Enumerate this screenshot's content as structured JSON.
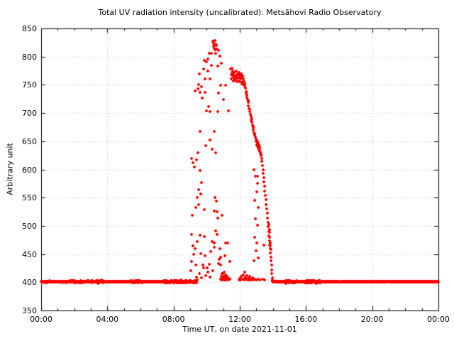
{
  "chart_data": {
    "type": "scatter",
    "title": "Total UV radiation intensity (uncalibrated). Metsähovi Radio Observatory",
    "xlabel": "Time UT, on date 2021-11-01",
    "ylabel": "Arbitrary unit",
    "xlim_hours": [
      0,
      24
    ],
    "ylim": [
      350,
      850
    ],
    "grid": "dotted",
    "legend": "none",
    "point_color": "#ff0000",
    "grid_color": "#b8b8b8",
    "axis_color": "#000000",
    "background_color": "#ffffff",
    "x_minor_tick_interval_hours": 1,
    "x_ticks": [
      {
        "hour": 0,
        "label": "00:00"
      },
      {
        "hour": 4,
        "label": "04:00"
      },
      {
        "hour": 8,
        "label": "08:00"
      },
      {
        "hour": 12,
        "label": "12:00"
      },
      {
        "hour": 16,
        "label": "16:00"
      },
      {
        "hour": 20,
        "label": "20:00"
      },
      {
        "hour": 24,
        "label": "00:00"
      }
    ],
    "y_ticks": [
      350,
      400,
      450,
      500,
      550,
      600,
      650,
      700,
      750,
      800,
      850
    ],
    "baseline": {
      "value": 401,
      "step_hours": 0.012,
      "segments": [
        {
          "start": 0.0,
          "end": 1.7,
          "jitter": 1.5
        },
        {
          "start": 1.7,
          "end": 2.1,
          "jitter": 3.0
        },
        {
          "start": 2.1,
          "end": 3.3,
          "jitter": 2.0
        },
        {
          "start": 3.3,
          "end": 3.75,
          "jitter": 3.0
        },
        {
          "start": 3.75,
          "end": 5.4,
          "jitter": 1.3
        },
        {
          "start": 5.4,
          "end": 6.1,
          "jitter": 2.2
        },
        {
          "start": 6.1,
          "end": 7.4,
          "jitter": 1.3
        },
        {
          "start": 7.4,
          "end": 8.3,
          "jitter": 2.5
        },
        {
          "start": 8.3,
          "end": 9.42,
          "jitter": 3.0
        },
        {
          "start": 13.97,
          "end": 14.75,
          "jitter": 1.5
        },
        {
          "start": 14.75,
          "end": 15.45,
          "jitter": 2.8
        },
        {
          "start": 15.45,
          "end": 15.95,
          "jitter": 1.3
        },
        {
          "start": 15.95,
          "end": 16.9,
          "jitter": 3.2
        },
        {
          "start": 16.9,
          "end": 24.0,
          "jitter": 1.0
        }
      ]
    },
    "event_points": [
      [
        9.3,
        739
      ],
      [
        9.45,
        743
      ],
      [
        9.5,
        751
      ],
      [
        9.56,
        770
      ],
      [
        9.62,
        737
      ],
      [
        9.7,
        747
      ],
      [
        9.72,
        727
      ],
      [
        9.8,
        778
      ],
      [
        9.85,
        793
      ],
      [
        9.88,
        737
      ],
      [
        9.9,
        760
      ],
      [
        9.94,
        642
      ],
      [
        9.97,
        791
      ],
      [
        10.0,
        704
      ],
      [
        10.05,
        796
      ],
      [
        10.08,
        774
      ],
      [
        10.1,
        712
      ],
      [
        10.15,
        806
      ],
      [
        10.2,
        760
      ],
      [
        10.22,
        703
      ],
      [
        10.28,
        785
      ],
      [
        10.3,
        806
      ],
      [
        10.37,
        827
      ],
      [
        10.4,
        824
      ],
      [
        10.42,
        818
      ],
      [
        10.45,
        815
      ],
      [
        10.48,
        829
      ],
      [
        10.5,
        822
      ],
      [
        10.52,
        812
      ],
      [
        10.55,
        806
      ],
      [
        10.57,
        820
      ],
      [
        10.6,
        821
      ],
      [
        10.63,
        814
      ],
      [
        10.65,
        703
      ],
      [
        10.68,
        783
      ],
      [
        10.7,
        735
      ],
      [
        10.72,
        811
      ],
      [
        10.78,
        801
      ],
      [
        10.85,
        749
      ],
      [
        10.9,
        788
      ],
      [
        11.0,
        724
      ],
      [
        11.15,
        749
      ],
      [
        11.3,
        704
      ],
      [
        9.1,
        620
      ],
      [
        9.15,
        612
      ],
      [
        9.25,
        605
      ],
      [
        9.4,
        617
      ],
      [
        9.48,
        630
      ],
      [
        9.58,
        667
      ],
      [
        9.6,
        598
      ],
      [
        9.68,
        577
      ],
      [
        9.52,
        564
      ],
      [
        9.44,
        550
      ],
      [
        9.64,
        557
      ],
      [
        9.5,
        538
      ],
      [
        9.35,
        533
      ],
      [
        9.12,
        519
      ],
      [
        9.84,
        529
      ],
      [
        10.18,
        652
      ],
      [
        10.33,
        636
      ],
      [
        10.44,
        667
      ],
      [
        10.54,
        630
      ],
      [
        10.5,
        550
      ],
      [
        10.57,
        544
      ],
      [
        10.47,
        526
      ],
      [
        10.62,
        525
      ],
      [
        10.67,
        514
      ],
      [
        10.53,
        491
      ],
      [
        10.64,
        485
      ],
      [
        10.46,
        462
      ],
      [
        10.8,
        459
      ],
      [
        10.92,
        519
      ],
      [
        10.85,
        445
      ],
      [
        10.74,
        441
      ],
      [
        10.7,
        433
      ],
      [
        10.86,
        431
      ],
      [
        10.95,
        415
      ],
      [
        9.05,
        420
      ],
      [
        9.08,
        437
      ],
      [
        9.1,
        485
      ],
      [
        9.18,
        464
      ],
      [
        9.22,
        449
      ],
      [
        9.28,
        460
      ],
      [
        9.33,
        431
      ],
      [
        9.38,
        409
      ],
      [
        9.42,
        472
      ],
      [
        9.55,
        415
      ],
      [
        9.58,
        483
      ],
      [
        9.63,
        451
      ],
      [
        9.68,
        408
      ],
      [
        9.75,
        430
      ],
      [
        9.8,
        426
      ],
      [
        9.86,
        481
      ],
      [
        9.92,
        447
      ],
      [
        9.96,
        412
      ],
      [
        10.02,
        425
      ],
      [
        10.08,
        418
      ],
      [
        10.14,
        432
      ],
      [
        10.2,
        409
      ],
      [
        10.26,
        455
      ],
      [
        10.32,
        472
      ],
      [
        10.38,
        420
      ],
      [
        10.44,
        470
      ],
      [
        10.85,
        406
      ],
      [
        10.88,
        410
      ],
      [
        10.9,
        404
      ],
      [
        10.92,
        415
      ],
      [
        10.95,
        408
      ],
      [
        10.98,
        404
      ],
      [
        11.0,
        411
      ],
      [
        11.02,
        406
      ],
      [
        11.05,
        418
      ],
      [
        11.08,
        404
      ],
      [
        11.1,
        409
      ],
      [
        11.12,
        405
      ],
      [
        11.15,
        413
      ],
      [
        11.18,
        406
      ],
      [
        11.2,
        404
      ],
      [
        11.22,
        410
      ],
      [
        11.25,
        405
      ],
      [
        11.28,
        408
      ],
      [
        11.32,
        404
      ],
      [
        11.36,
        407
      ],
      [
        11.4,
        405
      ],
      [
        11.1,
        447
      ],
      [
        11.15,
        470
      ],
      [
        11.28,
        470
      ],
      [
        11.42,
        437
      ],
      [
        11.45,
        778
      ],
      [
        11.47,
        768
      ],
      [
        11.5,
        760
      ],
      [
        11.52,
        771
      ],
      [
        11.53,
        780
      ],
      [
        11.55,
        765
      ],
      [
        11.57,
        775
      ],
      [
        11.6,
        757
      ],
      [
        11.62,
        770
      ],
      [
        11.65,
        762
      ],
      [
        11.67,
        772
      ],
      [
        11.7,
        758
      ],
      [
        11.72,
        766
      ],
      [
        11.75,
        760
      ],
      [
        11.77,
        774
      ],
      [
        11.8,
        765
      ],
      [
        11.82,
        756
      ],
      [
        11.85,
        770
      ],
      [
        11.88,
        762
      ],
      [
        11.9,
        768
      ],
      [
        11.92,
        757
      ],
      [
        11.95,
        772
      ],
      [
        11.98,
        764
      ],
      [
        12.0,
        756
      ],
      [
        12.02,
        766
      ],
      [
        12.05,
        760
      ],
      [
        12.08,
        770
      ],
      [
        12.1,
        762
      ],
      [
        12.12,
        752
      ],
      [
        12.15,
        765
      ],
      [
        12.18,
        755
      ],
      [
        12.2,
        760
      ],
      [
        12.22,
        750
      ],
      [
        12.25,
        756
      ],
      [
        12.28,
        748
      ],
      [
        12.3,
        752
      ],
      [
        12.33,
        744
      ],
      [
        12.37,
        738
      ],
      [
        12.4,
        735
      ],
      [
        12.42,
        732
      ],
      [
        12.43,
        728
      ],
      [
        12.47,
        724
      ],
      [
        12.5,
        719
      ],
      [
        12.52,
        722
      ],
      [
        12.53,
        713
      ],
      [
        12.57,
        708
      ],
      [
        12.6,
        703
      ],
      [
        12.62,
        706
      ],
      [
        12.63,
        697
      ],
      [
        12.67,
        694
      ],
      [
        12.7,
        688
      ],
      [
        12.72,
        690
      ],
      [
        12.73,
        684
      ],
      [
        12.77,
        679
      ],
      [
        12.8,
        674
      ],
      [
        12.82,
        676
      ],
      [
        12.83,
        670
      ],
      [
        12.87,
        665
      ],
      [
        12.9,
        661
      ],
      [
        12.92,
        663
      ],
      [
        12.93,
        657
      ],
      [
        12.97,
        653
      ],
      [
        13.0,
        650
      ],
      [
        13.02,
        648
      ],
      [
        13.04,
        644
      ],
      [
        13.06,
        650
      ],
      [
        13.08,
        641
      ],
      [
        13.1,
        646
      ],
      [
        13.12,
        638
      ],
      [
        13.14,
        643
      ],
      [
        13.16,
        635
      ],
      [
        13.18,
        640
      ],
      [
        13.2,
        632
      ],
      [
        13.22,
        636
      ],
      [
        13.24,
        628
      ],
      [
        13.26,
        631
      ],
      [
        13.28,
        624
      ],
      [
        13.3,
        627
      ],
      [
        13.31,
        620
      ],
      [
        13.34,
        614
      ],
      [
        13.37,
        607
      ],
      [
        13.4,
        600
      ],
      [
        13.42,
        593
      ],
      [
        13.45,
        586
      ],
      [
        13.47,
        578
      ],
      [
        13.5,
        570
      ],
      [
        13.52,
        562
      ],
      [
        13.55,
        554
      ],
      [
        13.57,
        546
      ],
      [
        13.6,
        538
      ],
      [
        13.62,
        530
      ],
      [
        13.65,
        522
      ],
      [
        13.67,
        514
      ],
      [
        13.7,
        506
      ],
      [
        13.72,
        498
      ],
      [
        13.74,
        490
      ],
      [
        13.75,
        502
      ],
      [
        13.76,
        482
      ],
      [
        13.78,
        474
      ],
      [
        13.78,
        494
      ],
      [
        13.8,
        466
      ],
      [
        13.8,
        488
      ],
      [
        13.82,
        474
      ],
      [
        13.82,
        480
      ],
      [
        13.83,
        460
      ],
      [
        13.84,
        470
      ],
      [
        13.85,
        452
      ],
      [
        13.86,
        464
      ],
      [
        13.87,
        458
      ],
      [
        13.88,
        445
      ],
      [
        13.9,
        438
      ],
      [
        13.92,
        430
      ],
      [
        13.93,
        422
      ],
      [
        13.95,
        415
      ],
      [
        13.96,
        408
      ],
      [
        13.97,
        404
      ],
      [
        12.85,
        600
      ],
      [
        12.95,
        588
      ],
      [
        13.05,
        588
      ],
      [
        13.08,
        575
      ],
      [
        13.02,
        560
      ],
      [
        12.88,
        545
      ],
      [
        13.12,
        533
      ],
      [
        12.95,
        512
      ],
      [
        13.05,
        501
      ],
      [
        12.9,
        480
      ],
      [
        13.03,
        470
      ],
      [
        12.98,
        456
      ],
      [
        13.1,
        443
      ],
      [
        12.86,
        438
      ],
      [
        13.45,
        466
      ],
      [
        11.95,
        404
      ],
      [
        12.0,
        407
      ],
      [
        12.05,
        404
      ],
      [
        12.1,
        410
      ],
      [
        12.15,
        405
      ],
      [
        12.2,
        413
      ],
      [
        12.25,
        406
      ],
      [
        12.28,
        418
      ],
      [
        12.32,
        404
      ],
      [
        12.36,
        409
      ],
      [
        12.4,
        405
      ],
      [
        12.44,
        412
      ],
      [
        12.48,
        404
      ],
      [
        12.52,
        407
      ],
      [
        12.56,
        404
      ],
      [
        12.6,
        410
      ],
      [
        12.65,
        405
      ],
      [
        12.7,
        404
      ],
      [
        12.76,
        408
      ],
      [
        12.82,
        404
      ],
      [
        12.9,
        406
      ],
      [
        13.0,
        404
      ],
      [
        13.1,
        405
      ],
      [
        13.22,
        404
      ],
      [
        13.35,
        406
      ],
      [
        13.5,
        404
      ]
    ]
  }
}
